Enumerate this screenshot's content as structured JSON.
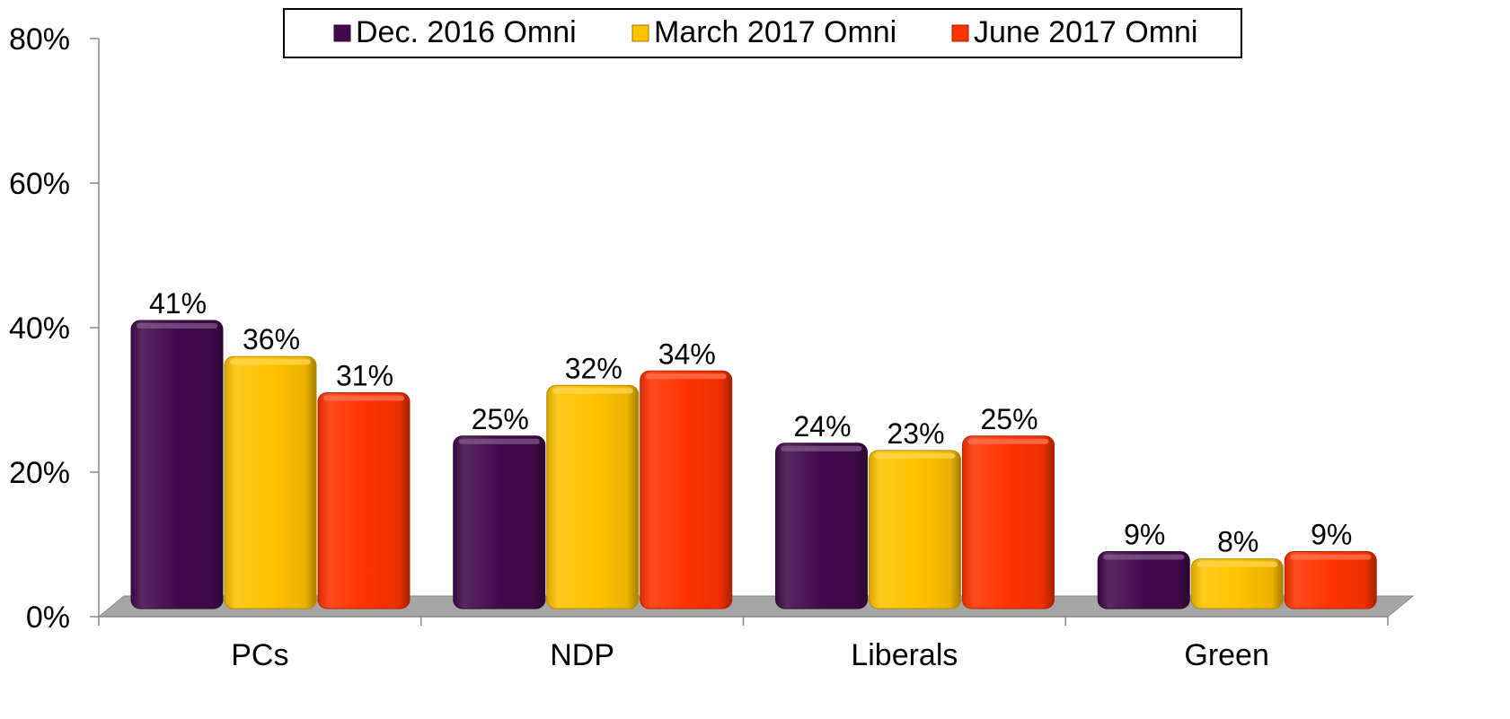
{
  "chart_data": {
    "type": "bar",
    "categories": [
      "PCs",
      "NDP",
      "Liberals",
      "Green"
    ],
    "series": [
      {
        "name": "Dec. 2016 Omni",
        "values": [
          41,
          25,
          24,
          9
        ],
        "labels": [
          "41%",
          "25%",
          "24%",
          "9%"
        ],
        "color": "#420a4c"
      },
      {
        "name": "March 2017 Omni",
        "values": [
          36,
          32,
          23,
          8
        ],
        "labels": [
          "36%",
          "32%",
          "23%",
          "8%"
        ],
        "color": "#ffc300"
      },
      {
        "name": "June 2017 Omni",
        "values": [
          31,
          34,
          25,
          9
        ],
        "labels": [
          "31%",
          "34%",
          "25%",
          "9%"
        ],
        "color": "#ff3300"
      }
    ],
    "y_ticks": [
      {
        "value": 0,
        "label": "0%"
      },
      {
        "value": 20,
        "label": "20%"
      },
      {
        "value": 40,
        "label": "40%"
      },
      {
        "value": 60,
        "label": "60%"
      },
      {
        "value": 80,
        "label": "80%"
      }
    ],
    "ylim": [
      0,
      80
    ],
    "title": "",
    "xlabel": "",
    "ylabel": "",
    "grid": false,
    "legend_position": "top-right",
    "floor_color": "#a6a6a6"
  }
}
